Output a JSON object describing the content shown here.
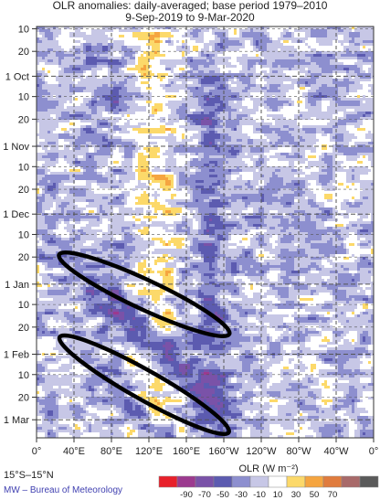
{
  "header": {
    "title": "OLR anomalies: daily-averaged; base period 1979–2010",
    "date_range": "9-Sep-2019 to 9-Mar-2020"
  },
  "footer": {
    "region": "15°S–15°N",
    "credit": "MW – Bureau of Meteorology"
  },
  "chart_data": {
    "type": "heatmap",
    "title": "OLR anomalies: daily-averaged; base period 1979–2010",
    "subtitle": "9-Sep-2019 to 9-Mar-2020",
    "x_axis": {
      "ticks": [
        "0°",
        "40°E",
        "80°E",
        "120°E",
        "160°E",
        "160°W",
        "120°W",
        "80°W",
        "40°W",
        "0°"
      ],
      "range_deg_east": [
        0,
        360
      ],
      "grid": "dashed"
    },
    "y_axis": {
      "ticks": [
        "10",
        "20",
        "1 Oct",
        "10",
        "20",
        "1 Nov",
        "10",
        "20",
        "1 Dec",
        "10",
        "20",
        "1 Jan",
        "10",
        "20",
        "1 Feb",
        "10",
        "20",
        "1 Mar"
      ],
      "range": [
        "9-Sep-2019",
        "9-Mar-2020"
      ],
      "direction": "time increases downward",
      "grid": "dashed"
    },
    "colorbar": {
      "label": "OLR (W m⁻²)",
      "ticks": [
        "-90",
        "-70",
        "-50",
        "-30",
        "-10",
        "10",
        "30",
        "50",
        "70"
      ],
      "colors": [
        "#e8202a",
        "#9c3a8f",
        "#7a52a8",
        "#5c5bb0",
        "#8d8fcf",
        "#c7c7e6",
        "#ffffff",
        "#fcd96a",
        "#f5a540",
        "#e07c3e",
        "#a86a6a",
        "#5a5a5a"
      ]
    },
    "annotations": [
      {
        "shape": "ellipse",
        "from": {
          "lon_e": 40,
          "date": "2019-12-22"
        },
        "to": {
          "lon_e": 190,
          "date": "2020-01-20"
        }
      },
      {
        "shape": "ellipse",
        "from": {
          "lon_e": 40,
          "date": "2020-01-28"
        },
        "to": {
          "lon_e": 190,
          "date": "2020-03-03"
        }
      }
    ],
    "features": [
      {
        "sign": "positive",
        "description_lon_e": [
          95,
          150
        ],
        "dates": [
          "2019-09-09",
          "2020-03-09"
        ]
      },
      {
        "sign": "negative",
        "description_lon_e": [
          150,
          200
        ],
        "dates": [
          "2019-10-01",
          "2020-03-09"
        ]
      }
    ]
  }
}
